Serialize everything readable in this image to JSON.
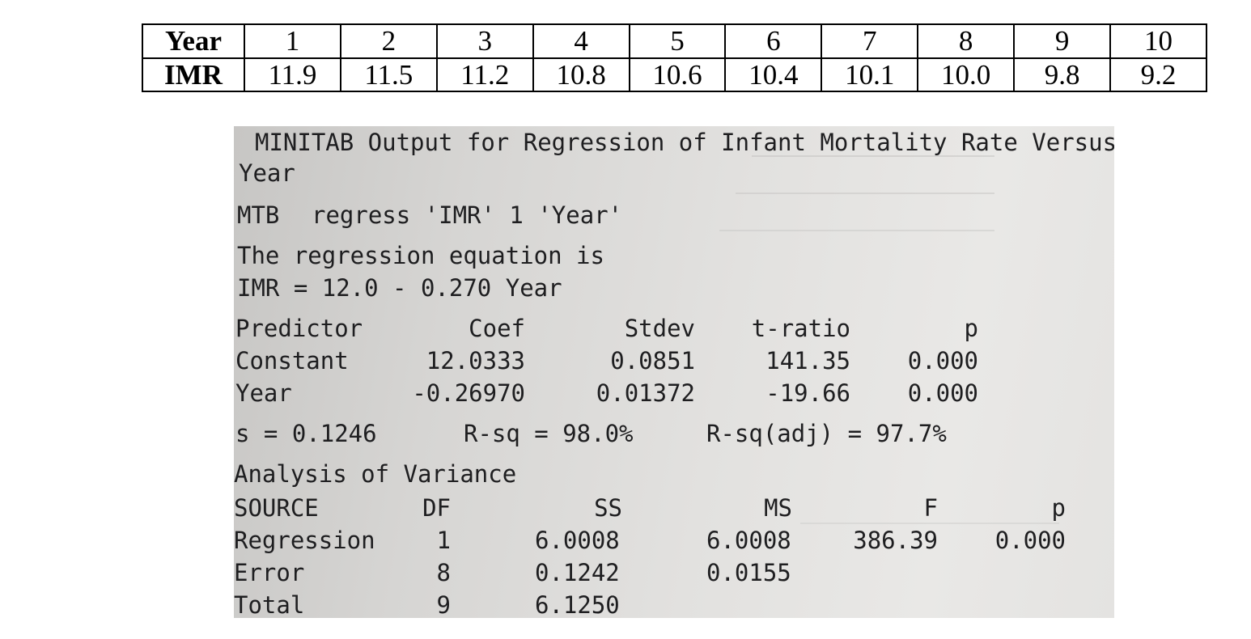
{
  "table": {
    "row1_header": "Year",
    "row2_header": "IMR",
    "years": [
      "1",
      "2",
      "3",
      "4",
      "5",
      "6",
      "7",
      "8",
      "9",
      "10"
    ],
    "imr": [
      "11.9",
      "11.5",
      "11.2",
      "10.8",
      "10.6",
      "10.4",
      "10.1",
      "10.0",
      "9.8",
      "9.2"
    ]
  },
  "printout": {
    "title_line1": "MINITAB Output for Regression of Infant Mortality Rate Versus",
    "title_line2": "Year",
    "command_prompt": "MTB",
    "command": "regress 'IMR' 1 'Year'",
    "equation_intro": "The regression equation is",
    "equation": "IMR = 12.0 - 0.270 Year",
    "coef_headers": {
      "predictor": "Predictor",
      "coef": "Coef",
      "stdev": "Stdev",
      "t_ratio": "t-ratio",
      "p": "p"
    },
    "coef_rows": [
      {
        "predictor": "Constant",
        "coef": "12.0333",
        "stdev": "0.0851",
        "t_ratio": "141.35",
        "p": "0.000"
      },
      {
        "predictor": "Year",
        "coef": "-0.26970",
        "stdev": "0.01372",
        "t_ratio": "-19.66",
        "p": "0.000"
      }
    ],
    "fit_stats": {
      "s": "s = 0.1246",
      "rsq": "R-sq = 98.0%",
      "rsq_adj": "R-sq(adj) = 97.7%"
    },
    "anova_title": "Analysis of Variance",
    "anova_headers": {
      "source": "SOURCE",
      "df": "DF",
      "ss": "SS",
      "ms": "MS",
      "f": "F",
      "p": "p"
    },
    "anova_rows": [
      {
        "source": "Regression",
        "df": "1",
        "ss": "6.0008",
        "ms": "6.0008",
        "f": "386.39",
        "p": "0.000"
      },
      {
        "source": "Error",
        "df": "8",
        "ss": "0.1242",
        "ms": "0.0155",
        "f": "",
        "p": ""
      },
      {
        "source": "Total",
        "df": "9",
        "ss": "6.1250",
        "ms": "",
        "f": "",
        "p": ""
      }
    ]
  }
}
